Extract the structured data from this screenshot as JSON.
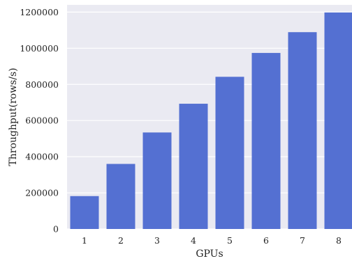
{
  "chart_data": {
    "type": "bar",
    "title": "",
    "xlabel": "GPUs",
    "ylabel": "Throughput(rows/s)",
    "categories": [
      "1",
      "2",
      "3",
      "4",
      "5",
      "6",
      "7",
      "8"
    ],
    "values": [
      182000,
      360000,
      534000,
      693000,
      842000,
      974000,
      1089000,
      1198000
    ],
    "ylim": [
      0,
      1240000
    ],
    "yticks": [
      0,
      200000,
      400000,
      600000,
      800000,
      1000000,
      1200000
    ],
    "ytick_labels": [
      "0",
      "200000",
      "400000",
      "600000",
      "800000",
      "1000000",
      "1200000"
    ],
    "grid": true,
    "colors": {
      "bar": "#5470d2",
      "background": "#eaeaf2",
      "grid": "#ffffff"
    }
  }
}
